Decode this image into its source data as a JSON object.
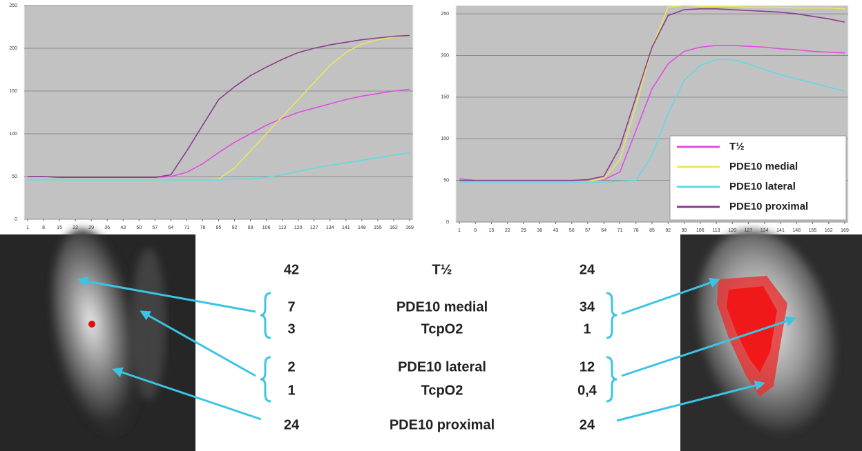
{
  "chart_data": [
    {
      "type": "line",
      "x": [
        1,
        8,
        15,
        22,
        29,
        36,
        43,
        50,
        57,
        64,
        71,
        78,
        85,
        92,
        99,
        106,
        113,
        120,
        127,
        134,
        141,
        148,
        155,
        162,
        169
      ],
      "xlim": [
        1,
        169
      ],
      "xticks": [
        1,
        8,
        15,
        22,
        29,
        36,
        43,
        50,
        57,
        64,
        71,
        78,
        85,
        92,
        99,
        106,
        113,
        120,
        127,
        134,
        141,
        148,
        155,
        162,
        169
      ],
      "ylim": [
        0,
        250
      ],
      "yticks": [
        0,
        50,
        100,
        150,
        200,
        250
      ],
      "grid": true,
      "series": [
        {
          "color": "#e04ee0",
          "values": [
            50,
            50,
            49,
            49,
            49,
            49,
            49,
            49,
            49,
            50,
            55,
            65,
            78,
            90,
            100,
            110,
            118,
            125,
            130,
            135,
            140,
            144,
            147,
            150,
            152
          ]
        },
        {
          "color": "#e8e85a",
          "values": [
            46,
            46,
            46,
            46,
            46,
            46,
            46,
            46,
            46,
            46,
            46,
            46,
            47,
            60,
            80,
            100,
            120,
            140,
            160,
            180,
            195,
            205,
            210,
            213,
            215
          ]
        },
        {
          "color": "#62d8e6",
          "values": [
            46,
            46,
            46,
            46,
            46,
            46,
            46,
            46,
            46,
            46,
            46,
            46,
            46,
            47,
            47,
            49,
            52,
            56,
            60,
            63,
            66,
            69,
            72,
            75,
            78
          ]
        },
        {
          "color": "#8a3c8c",
          "values": [
            50,
            50,
            49,
            49,
            49,
            49,
            49,
            49,
            49,
            52,
            80,
            110,
            140,
            155,
            168,
            178,
            187,
            195,
            200,
            204,
            207,
            210,
            212,
            214,
            215
          ]
        }
      ]
    },
    {
      "type": "line",
      "x": [
        1,
        8,
        15,
        22,
        29,
        36,
        43,
        50,
        57,
        64,
        71,
        78,
        85,
        92,
        99,
        106,
        113,
        120,
        127,
        134,
        141,
        148,
        155,
        162,
        169
      ],
      "xlim": [
        1,
        169
      ],
      "xticks": [
        1,
        8,
        15,
        22,
        29,
        36,
        43,
        50,
        57,
        64,
        71,
        78,
        85,
        92,
        99,
        106,
        113,
        120,
        127,
        134,
        141,
        148,
        155,
        162,
        169
      ],
      "ylim": [
        0,
        260
      ],
      "yticks": [
        0,
        50,
        100,
        150,
        200,
        250
      ],
      "grid": true,
      "legend": "lower right",
      "series": [
        {
          "name": "T½",
          "color": "#e04ee0",
          "values": [
            52,
            50,
            50,
            50,
            50,
            50,
            50,
            50,
            50,
            51,
            60,
            110,
            160,
            190,
            205,
            210,
            212,
            212,
            211,
            210,
            208,
            207,
            205,
            204,
            203
          ]
        },
        {
          "name": "PDE10 medial",
          "color": "#e8e85a",
          "values": [
            48,
            48,
            48,
            48,
            48,
            48,
            48,
            48,
            49,
            52,
            75,
            140,
            210,
            258,
            260,
            259,
            259,
            259,
            258,
            258,
            258,
            257,
            257,
            257,
            256
          ]
        },
        {
          "name": "PDE10 lateral",
          "color": "#62d8e6",
          "values": [
            48,
            48,
            48,
            48,
            48,
            48,
            48,
            48,
            48,
            48,
            49,
            50,
            80,
            130,
            170,
            188,
            195,
            195,
            190,
            183,
            177,
            172,
            167,
            162,
            157
          ]
        },
        {
          "name": "PDE10 proximal",
          "color": "#8a3c8c",
          "values": [
            50,
            50,
            50,
            50,
            50,
            50,
            50,
            50,
            51,
            55,
            90,
            150,
            210,
            248,
            255,
            256,
            256,
            255,
            254,
            253,
            252,
            250,
            247,
            244,
            240
          ]
        }
      ]
    }
  ],
  "table": {
    "rows": [
      [
        "42",
        "T½",
        "24"
      ],
      [
        "7",
        "PDE10 medial",
        "34"
      ],
      [
        "3",
        "TcpO2",
        "1"
      ],
      [
        "2",
        "PDE10 lateral",
        "12"
      ],
      [
        "1",
        "TcpO2",
        "0,4"
      ],
      [
        "24",
        "PDE10 proximal",
        "24"
      ]
    ]
  }
}
